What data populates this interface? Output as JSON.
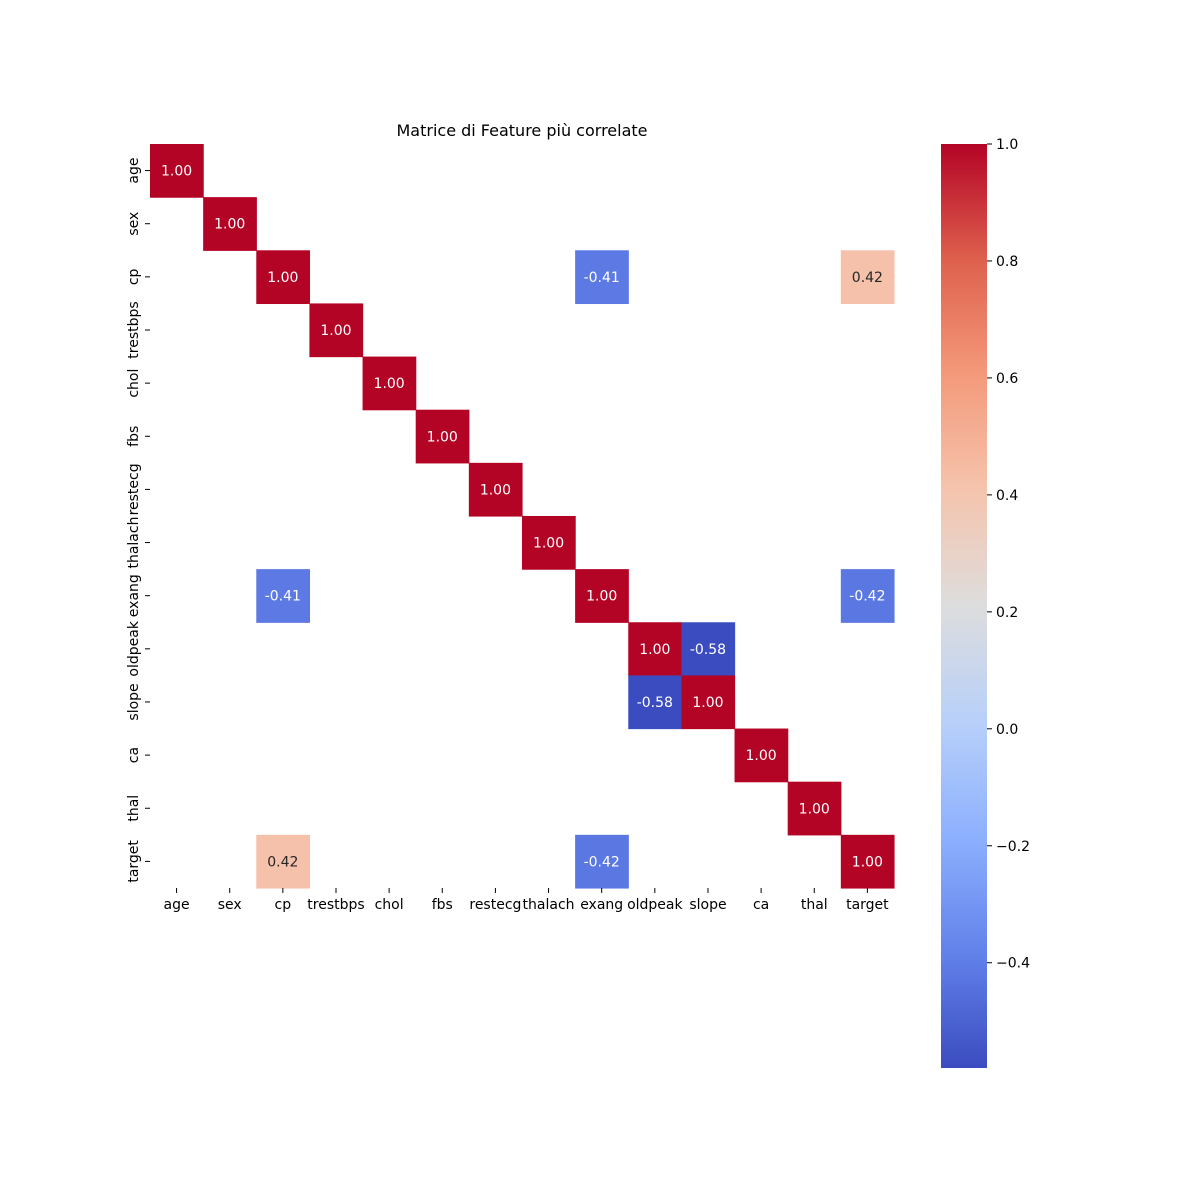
{
  "chart_data": {
    "type": "heatmap",
    "title": "Matrice di Feature più correlate",
    "xlabel": "",
    "ylabel": "",
    "categories": [
      "age",
      "sex",
      "cp",
      "trestbps",
      "chol",
      "fbs",
      "restecg",
      "thalach",
      "exang",
      "oldpeak",
      "slope",
      "ca",
      "thal",
      "target"
    ],
    "values": [
      [
        1.0,
        null,
        null,
        null,
        null,
        null,
        null,
        null,
        null,
        null,
        null,
        null,
        null,
        null
      ],
      [
        null,
        1.0,
        null,
        null,
        null,
        null,
        null,
        null,
        null,
        null,
        null,
        null,
        null,
        null
      ],
      [
        null,
        null,
        1.0,
        null,
        null,
        null,
        null,
        null,
        -0.41,
        null,
        null,
        null,
        null,
        0.42
      ],
      [
        null,
        null,
        null,
        1.0,
        null,
        null,
        null,
        null,
        null,
        null,
        null,
        null,
        null,
        null
      ],
      [
        null,
        null,
        null,
        null,
        1.0,
        null,
        null,
        null,
        null,
        null,
        null,
        null,
        null,
        null
      ],
      [
        null,
        null,
        null,
        null,
        null,
        1.0,
        null,
        null,
        null,
        null,
        null,
        null,
        null,
        null
      ],
      [
        null,
        null,
        null,
        null,
        null,
        null,
        1.0,
        null,
        null,
        null,
        null,
        null,
        null,
        null
      ],
      [
        null,
        null,
        null,
        null,
        null,
        null,
        null,
        1.0,
        null,
        null,
        null,
        null,
        null,
        null
      ],
      [
        null,
        null,
        -0.41,
        null,
        null,
        null,
        null,
        null,
        1.0,
        null,
        null,
        null,
        null,
        -0.42
      ],
      [
        null,
        null,
        null,
        null,
        null,
        null,
        null,
        null,
        null,
        1.0,
        -0.58,
        null,
        null,
        null
      ],
      [
        null,
        null,
        null,
        null,
        null,
        null,
        null,
        null,
        null,
        -0.58,
        1.0,
        null,
        null,
        null
      ],
      [
        null,
        null,
        null,
        null,
        null,
        null,
        null,
        null,
        null,
        null,
        null,
        1.0,
        null,
        null
      ],
      [
        null,
        null,
        null,
        null,
        null,
        null,
        null,
        null,
        null,
        null,
        null,
        null,
        1.0,
        null
      ],
      [
        null,
        null,
        0.42,
        null,
        null,
        null,
        null,
        null,
        -0.42,
        null,
        null,
        null,
        null,
        1.0
      ]
    ],
    "colorbar": {
      "colormap": "coolwarm",
      "vmin": -0.58,
      "vmax": 1.0,
      "ticks": [
        1.0,
        0.8,
        0.6,
        0.4,
        0.2,
        0.0,
        -0.2,
        -0.4
      ],
      "tick_labels": [
        "1.0",
        "0.8",
        "0.6",
        "0.4",
        "0.2",
        "0.0",
        "−0.2",
        "−0.4"
      ]
    },
    "annot_format": "2f",
    "grid": false,
    "legend": "colorbar-right"
  }
}
